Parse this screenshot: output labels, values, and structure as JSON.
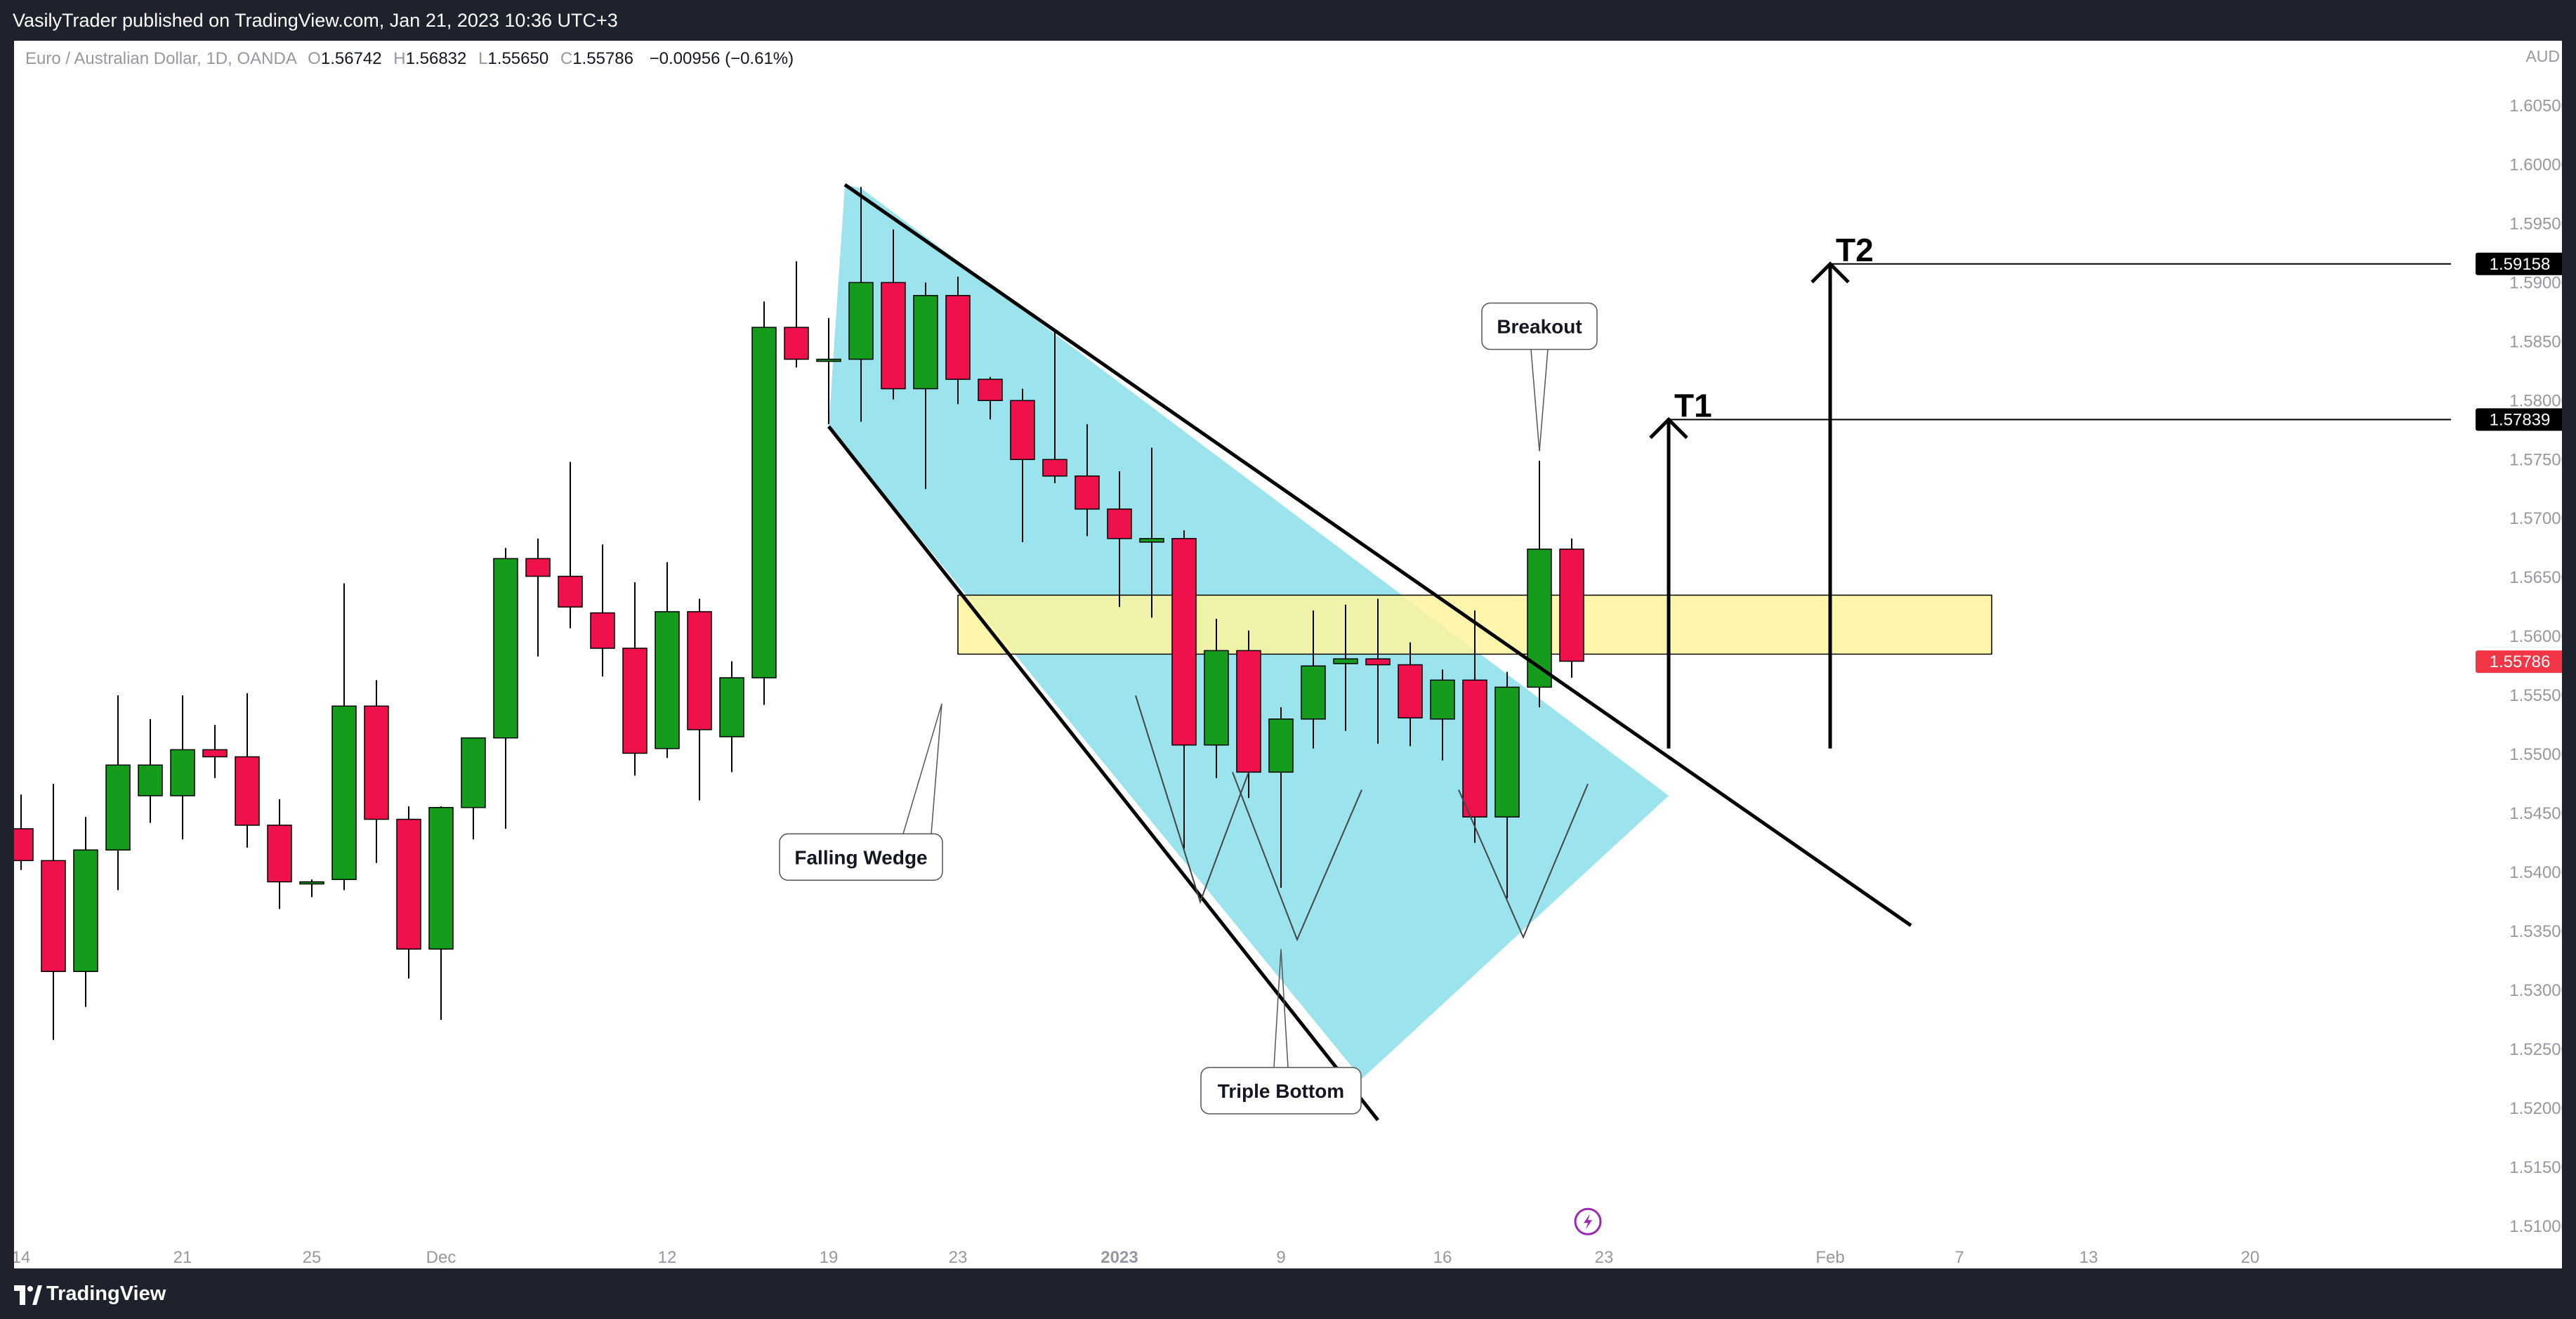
{
  "header": {
    "published_text": "VasilyTrader published on TradingView.com, Jan 21, 2023 10:36 UTC+3"
  },
  "legend": {
    "symbol": "Euro / Australian Dollar, 1D, OANDA",
    "o_label": "O",
    "o_value": "1.56742",
    "h_label": "H",
    "h_value": "1.56832",
    "l_label": "L",
    "l_value": "1.55650",
    "c_label": "C",
    "c_value": "1.55786",
    "change": "−0.00956 (−0.61%)"
  },
  "footer": {
    "brand": "TradingView"
  },
  "colors": {
    "up": "#169c1d",
    "down": "#f0104c",
    "wedge_fill": "#97e3ec",
    "zone_fill": "#fff59d",
    "price_tag": "#f23645",
    "label_tag": "#000000"
  },
  "chart_data": {
    "type": "candlestick",
    "currency": "AUD",
    "y_ticks": [
      "1.51000",
      "1.51500",
      "1.52000",
      "1.52500",
      "1.53000",
      "1.53500",
      "1.54000",
      "1.54500",
      "1.55000",
      "1.55500",
      "1.56000",
      "1.56500",
      "1.57000",
      "1.57500",
      "1.58000",
      "1.58500",
      "1.59000",
      "1.59500",
      "1.60000",
      "1.60500"
    ],
    "ylim": [
      1.5075,
      1.6105
    ],
    "x_ticks": [
      {
        "label": "14",
        "bar": 0
      },
      {
        "label": "21",
        "bar": 5
      },
      {
        "label": "25",
        "bar": 9
      },
      {
        "label": "Dec",
        "bar": 13
      },
      {
        "label": "12",
        "bar": 20
      },
      {
        "label": "19",
        "bar": 25
      },
      {
        "label": "23",
        "bar": 29
      },
      {
        "label": "2023",
        "bar": 34
      },
      {
        "label": "9",
        "bar": 39
      },
      {
        "label": "16",
        "bar": 44
      },
      {
        "label": "23",
        "bar": 49
      },
      {
        "label": "Feb",
        "bar": 56
      },
      {
        "label": "7",
        "bar": 60
      },
      {
        "label": "13",
        "bar": 64
      },
      {
        "label": "20",
        "bar": 69
      }
    ],
    "candles": [
      {
        "o": 1.5437,
        "h": 1.5466,
        "l": 1.5402,
        "c": 1.541
      },
      {
        "o": 1.541,
        "h": 1.5475,
        "l": 1.5258,
        "c": 1.5316
      },
      {
        "o": 1.5316,
        "h": 1.5447,
        "l": 1.5286,
        "c": 1.5419
      },
      {
        "o": 1.5419,
        "h": 1.555,
        "l": 1.5385,
        "c": 1.5491
      },
      {
        "o": 1.5465,
        "h": 1.553,
        "l": 1.5442,
        "c": 1.5491
      },
      {
        "o": 1.5465,
        "h": 1.555,
        "l": 1.5428,
        "c": 1.5504
      },
      {
        "o": 1.5504,
        "h": 1.5525,
        "l": 1.548,
        "c": 1.5498
      },
      {
        "o": 1.5498,
        "h": 1.5552,
        "l": 1.5421,
        "c": 1.544
      },
      {
        "o": 1.544,
        "h": 1.5462,
        "l": 1.5369,
        "c": 1.5392
      },
      {
        "o": 1.5392,
        "h": 1.5394,
        "l": 1.5379,
        "c": 1.5392
      },
      {
        "o": 1.5394,
        "h": 1.5645,
        "l": 1.5385,
        "c": 1.5541
      },
      {
        "o": 1.5541,
        "h": 1.5563,
        "l": 1.5408,
        "c": 1.5445
      },
      {
        "o": 1.5445,
        "h": 1.5456,
        "l": 1.531,
        "c": 1.5335
      },
      {
        "o": 1.5335,
        "h": 1.5456,
        "l": 1.5275,
        "c": 1.5455
      },
      {
        "o": 1.5455,
        "h": 1.5512,
        "l": 1.5428,
        "c": 1.5514
      },
      {
        "o": 1.5514,
        "h": 1.5675,
        "l": 1.5437,
        "c": 1.5666
      },
      {
        "o": 1.5666,
        "h": 1.5683,
        "l": 1.5583,
        "c": 1.5651
      },
      {
        "o": 1.5651,
        "h": 1.5748,
        "l": 1.5607,
        "c": 1.5625
      },
      {
        "o": 1.562,
        "h": 1.5678,
        "l": 1.5566,
        "c": 1.559
      },
      {
        "o": 1.559,
        "h": 1.5646,
        "l": 1.5482,
        "c": 1.5501
      },
      {
        "o": 1.5505,
        "h": 1.5663,
        "l": 1.5497,
        "c": 1.5621
      },
      {
        "o": 1.5621,
        "h": 1.5632,
        "l": 1.5461,
        "c": 1.5521
      },
      {
        "o": 1.5515,
        "h": 1.5579,
        "l": 1.5485,
        "c": 1.5565
      },
      {
        "o": 1.5565,
        "h": 1.5884,
        "l": 1.5542,
        "c": 1.5862
      },
      {
        "o": 1.5862,
        "h": 1.5918,
        "l": 1.5828,
        "c": 1.5835
      },
      {
        "o": 1.5835,
        "h": 1.587,
        "l": 1.578,
        "c": 1.5835
      },
      {
        "o": 1.5835,
        "h": 1.5981,
        "l": 1.5782,
        "c": 1.59
      },
      {
        "o": 1.59,
        "h": 1.5945,
        "l": 1.5801,
        "c": 1.581
      },
      {
        "o": 1.581,
        "h": 1.59,
        "l": 1.5725,
        "c": 1.5889
      },
      {
        "o": 1.5889,
        "h": 1.5905,
        "l": 1.5797,
        "c": 1.5818
      },
      {
        "o": 1.5818,
        "h": 1.582,
        "l": 1.5784,
        "c": 1.58
      },
      {
        "o": 1.58,
        "h": 1.581,
        "l": 1.568,
        "c": 1.575
      },
      {
        "o": 1.575,
        "h": 1.586,
        "l": 1.573,
        "c": 1.5736
      },
      {
        "o": 1.5736,
        "h": 1.578,
        "l": 1.5685,
        "c": 1.5708
      },
      {
        "o": 1.5708,
        "h": 1.574,
        "l": 1.5625,
        "c": 1.5683
      },
      {
        "o": 1.568,
        "h": 1.576,
        "l": 1.5616,
        "c": 1.5683
      },
      {
        "o": 1.5683,
        "h": 1.569,
        "l": 1.542,
        "c": 1.5508
      },
      {
        "o": 1.5508,
        "h": 1.5615,
        "l": 1.548,
        "c": 1.5588
      },
      {
        "o": 1.5588,
        "h": 1.5605,
        "l": 1.5463,
        "c": 1.5485
      },
      {
        "o": 1.5485,
        "h": 1.554,
        "l": 1.5387,
        "c": 1.553
      },
      {
        "o": 1.553,
        "h": 1.5622,
        "l": 1.5505,
        "c": 1.5575
      },
      {
        "o": 1.5577,
        "h": 1.5627,
        "l": 1.552,
        "c": 1.5581
      },
      {
        "o": 1.5581,
        "h": 1.5632,
        "l": 1.5509,
        "c": 1.5576
      },
      {
        "o": 1.5576,
        "h": 1.5595,
        "l": 1.5507,
        "c": 1.5531
      },
      {
        "o": 1.553,
        "h": 1.5572,
        "l": 1.5495,
        "c": 1.5563
      },
      {
        "o": 1.5563,
        "h": 1.5622,
        "l": 1.5425,
        "c": 1.5447
      },
      {
        "o": 1.5447,
        "h": 1.557,
        "l": 1.5378,
        "c": 1.5557
      },
      {
        "o": 1.5557,
        "h": 1.5749,
        "l": 1.554,
        "c": 1.5674
      },
      {
        "o": 1.5674,
        "h": 1.5683,
        "l": 1.5565,
        "c": 1.5579
      }
    ],
    "price_labels": [
      {
        "value": 1.59158,
        "text": "1.59158",
        "kind": "target"
      },
      {
        "value": 1.57839,
        "text": "1.57839",
        "kind": "target"
      },
      {
        "value": 1.55786,
        "text": "1.55786",
        "kind": "last"
      }
    ],
    "annotations": {
      "pattern_label": "Falling Wedge",
      "triple_bottom_label": "Triple Bottom",
      "breakout_label": "Breakout",
      "t1_label": "T1",
      "t2_label": "T2"
    }
  }
}
